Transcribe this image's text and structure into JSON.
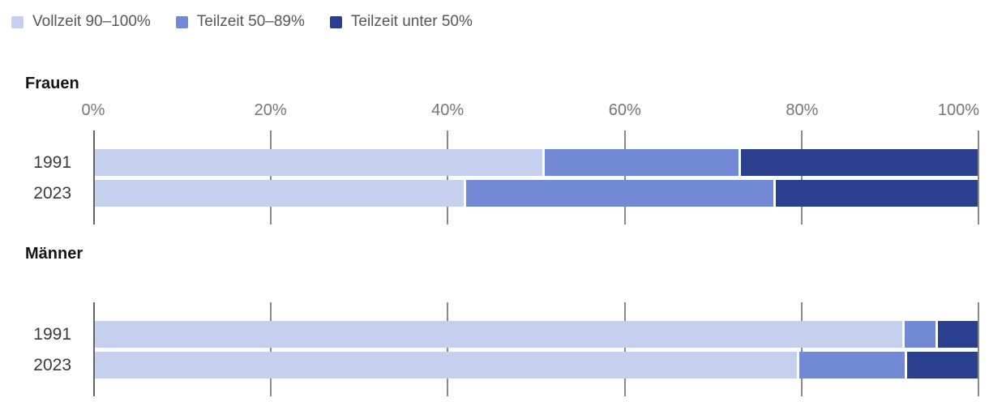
{
  "legend": {
    "items": [
      {
        "key": "vollzeit-90-100",
        "label": "Vollzeit 90–100%",
        "color": "#c5cfee"
      },
      {
        "key": "teilzeit-50-89",
        "label": "Teilzeit 50–89%",
        "color": "#7289d6"
      },
      {
        "key": "teilzeit-unter-50",
        "label": "Teilzeit unter 50%",
        "color": "#2b3f8f"
      }
    ]
  },
  "axis": {
    "tick_labels": [
      "0%",
      "20%",
      "40%",
      "60%",
      "80%",
      "100%"
    ],
    "tick_positions_pct": [
      0,
      20,
      40,
      60,
      80,
      100
    ]
  },
  "sections": [
    {
      "title": "Frauen",
      "show_axis_labels": true,
      "rows": [
        {
          "label": "1991",
          "values": [
            51,
            22,
            27
          ]
        },
        {
          "label": "2023",
          "values": [
            42,
            35,
            23
          ]
        }
      ]
    },
    {
      "title": "Männer",
      "show_axis_labels": false,
      "rows": [
        {
          "label": "1991",
          "values": [
            92,
            3.5,
            4.5
          ]
        },
        {
          "label": "2023",
          "values": [
            80,
            12,
            8
          ]
        }
      ]
    }
  ],
  "chart_data": {
    "type": "bar",
    "orientation": "horizontal",
    "stacked": true,
    "unit": "percent",
    "xlim": [
      0,
      100
    ],
    "x_ticks": [
      "0%",
      "20%",
      "40%",
      "60%",
      "80%",
      "100%"
    ],
    "legend_position": "top",
    "grid": true,
    "groups": [
      {
        "title": "Frauen",
        "categories": [
          "1991",
          "2023"
        ],
        "series": [
          {
            "name": "Vollzeit 90–100%",
            "color": "#c5cfee",
            "values": [
              51,
              42
            ]
          },
          {
            "name": "Teilzeit 50–89%",
            "color": "#7289d6",
            "values": [
              22,
              35
            ]
          },
          {
            "name": "Teilzeit unter 50%",
            "color": "#2b3f8f",
            "values": [
              27,
              23
            ]
          }
        ]
      },
      {
        "title": "Männer",
        "categories": [
          "1991",
          "2023"
        ],
        "series": [
          {
            "name": "Vollzeit 90–100%",
            "color": "#c5cfee",
            "values": [
              92,
              80
            ]
          },
          {
            "name": "Teilzeit 50–89%",
            "color": "#7289d6",
            "values": [
              3.5,
              12
            ]
          },
          {
            "name": "Teilzeit unter 50%",
            "color": "#2b3f8f",
            "values": [
              4.5,
              8
            ]
          }
        ]
      }
    ]
  }
}
